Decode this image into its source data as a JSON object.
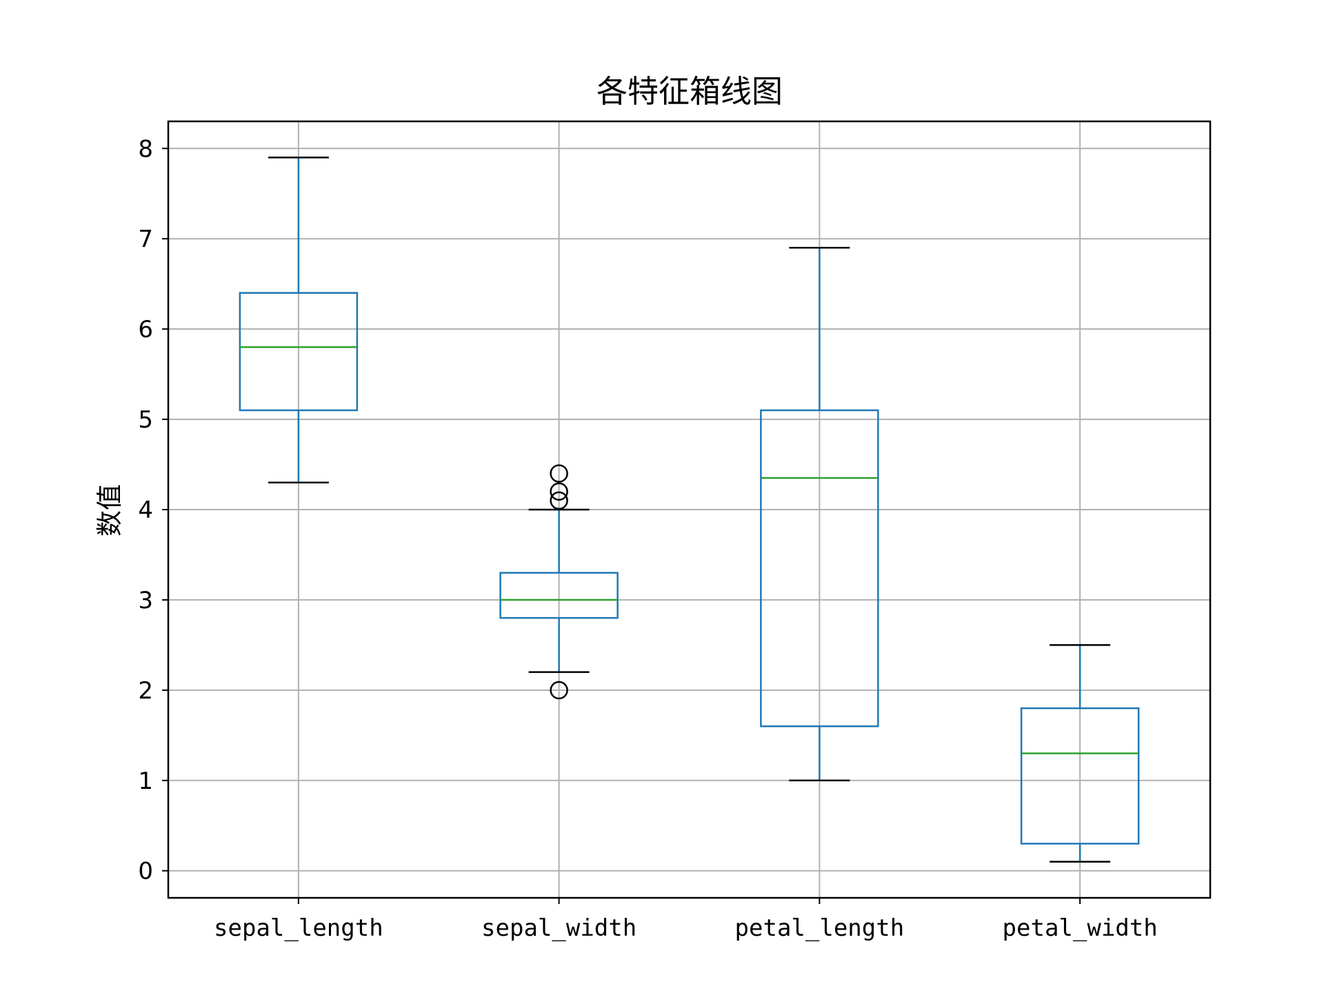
{
  "chart_data": {
    "type": "box",
    "title": "各特征箱线图",
    "xlabel": "",
    "ylabel": "数值",
    "ylim": [
      -0.3,
      8.3
    ],
    "yticks": [
      0,
      1,
      2,
      3,
      4,
      5,
      6,
      7,
      8
    ],
    "grid": true,
    "categories": [
      "sepal_length",
      "sepal_width",
      "petal_length",
      "petal_width"
    ],
    "boxes": [
      {
        "whisker_low": 4.3,
        "q1": 5.1,
        "median": 5.8,
        "q3": 6.4,
        "whisker_high": 7.9,
        "outliers": []
      },
      {
        "whisker_low": 2.2,
        "q1": 2.8,
        "median": 3.0,
        "q3": 3.3,
        "whisker_high": 4.0,
        "outliers": [
          4.1,
          4.2,
          4.4,
          2.0
        ]
      },
      {
        "whisker_low": 1.0,
        "q1": 1.6,
        "median": 4.35,
        "q3": 5.1,
        "whisker_high": 6.9,
        "outliers": []
      },
      {
        "whisker_low": 0.1,
        "q1": 0.3,
        "median": 1.3,
        "q3": 1.8,
        "whisker_high": 2.5,
        "outliers": []
      }
    ],
    "colors": {
      "box": "#1f77b4",
      "median": "#2ca02c",
      "whisker": "#000000",
      "grid": "#b0b0b0",
      "axes": "#000000"
    }
  }
}
